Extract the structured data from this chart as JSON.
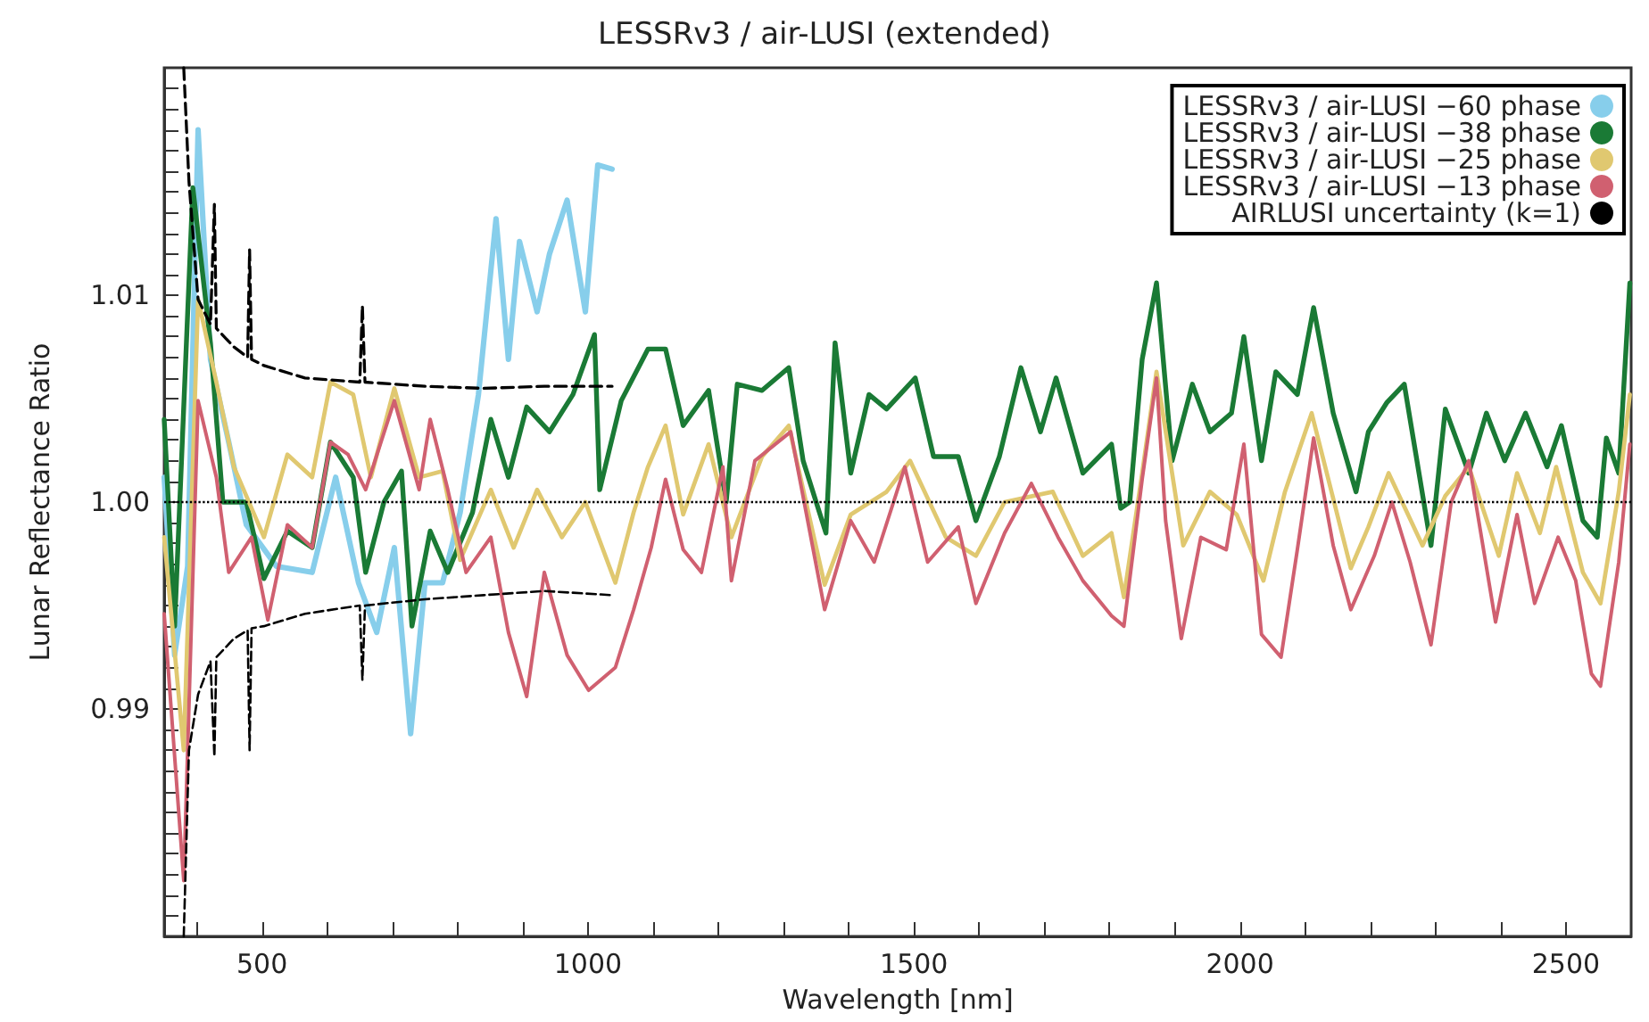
{
  "chart_data": {
    "type": "line",
    "title": "LESSRv3 / air-LUSI (extended)",
    "xlabel": "Wavelength [nm]",
    "ylabel": "Lunar Reflectance Ratio",
    "xlim": [
      350,
      2600
    ],
    "ylim": [
      0.979,
      1.021
    ],
    "xticks": [
      {
        "value": 400,
        "label": null
      },
      500,
      {
        "value": 600,
        "label": null
      },
      {
        "value": 700,
        "label": null
      },
      {
        "value": 800,
        "label": null
      },
      {
        "value": 900,
        "label": null
      },
      1000,
      {
        "value": 1100,
        "label": null
      },
      {
        "value": 1200,
        "label": null
      },
      {
        "value": 1300,
        "label": null
      },
      {
        "value": 1400,
        "label": null
      },
      1500,
      {
        "value": 1600,
        "label": null
      },
      {
        "value": 1700,
        "label": null
      },
      {
        "value": 1800,
        "label": null
      },
      {
        "value": 1900,
        "label": null
      },
      2000,
      {
        "value": 2100,
        "label": null
      },
      {
        "value": 2200,
        "label": null
      },
      {
        "value": 2300,
        "label": null
      },
      {
        "value": 2400,
        "label": null
      },
      2500
    ],
    "yticks": [
      {
        "value": 0.98,
        "label": null
      },
      {
        "value": 0.981,
        "label": null
      },
      {
        "value": 0.982,
        "label": null
      },
      {
        "value": 0.983,
        "label": null
      },
      {
        "value": 0.984,
        "label": null
      },
      {
        "value": 0.985,
        "label": null
      },
      {
        "value": 0.986,
        "label": null
      },
      {
        "value": 0.987,
        "label": null
      },
      {
        "value": 0.988,
        "label": null
      },
      {
        "value": 0.989,
        "label": null
      },
      0.99,
      {
        "value": 0.991,
        "label": null
      },
      {
        "value": 0.992,
        "label": null
      },
      {
        "value": 0.993,
        "label": null
      },
      {
        "value": 0.994,
        "label": null
      },
      {
        "value": 0.995,
        "label": null
      },
      {
        "value": 0.996,
        "label": null
      },
      {
        "value": 0.997,
        "label": null
      },
      {
        "value": 0.998,
        "label": null
      },
      {
        "value": 0.999,
        "label": null
      },
      {
        "value": 1,
        "label": "1.00"
      },
      {
        "value": 1.001,
        "label": null
      },
      {
        "value": 1.002,
        "label": null
      },
      {
        "value": 1.003,
        "label": null
      },
      {
        "value": 1.004,
        "label": null
      },
      {
        "value": 1.005,
        "label": null
      },
      {
        "value": 1.006,
        "label": null
      },
      {
        "value": 1.007,
        "label": null
      },
      {
        "value": 1.008,
        "label": null
      },
      {
        "value": 1.009,
        "label": null
      },
      1.01,
      {
        "value": 1.011,
        "label": null
      },
      {
        "value": 1.012,
        "label": null
      },
      {
        "value": 1.013,
        "label": null
      },
      {
        "value": 1.014,
        "label": null
      },
      {
        "value": 1.015,
        "label": null
      },
      {
        "value": 1.016,
        "label": null
      },
      {
        "value": 1.017,
        "label": null
      },
      {
        "value": 1.018,
        "label": null
      },
      {
        "value": 1.019,
        "label": null
      },
      {
        "value": 1.02,
        "label": null
      }
    ],
    "grid": false,
    "legend": "top right",
    "marker": "none",
    "ref_lines": [
      {
        "axis": "y",
        "value": 1,
        "label": null,
        "color": "#000000",
        "line_style": "dotted"
      }
    ],
    "series": [
      {
        "name": "LESSRv3 / air-LUSI −60 phase",
        "color": "#87ceeb",
        "line_style": "solid",
        "x": [
          350,
          366,
          386,
          402,
          421,
          449,
          476,
          522,
          577,
          613,
          648,
          676,
          703,
          728,
          750,
          777,
          804,
          832,
          859,
          878,
          895,
          922,
          941,
          968,
          996,
          1015,
          1037
        ],
        "values": [
          1.0012,
          0.9926,
          0.9969,
          1.018,
          1.0069,
          1.0029,
          0.9989,
          0.9969,
          0.9966,
          1.0012,
          0.9961,
          0.9937,
          0.9978,
          0.9888,
          0.9961,
          0.9961,
          0.9995,
          1.0052,
          1.0137,
          1.0069,
          1.0126,
          1.0092,
          1.012,
          1.0146,
          1.0092,
          1.0163,
          1.0161
        ]
      },
      {
        "name": "LESSRv3 / air-LUSI −38 phase",
        "color": "#1a7a35",
        "line_style": "solid",
        "x": [
          350,
          366,
          394,
          421,
          440,
          476,
          503,
          539,
          577,
          605,
          640,
          659,
          687,
          714,
          730,
          758,
          785,
          823,
          851,
          878,
          906,
          941,
          977,
          1010,
          1018,
          1051,
          1092,
          1119,
          1146,
          1185,
          1212,
          1229,
          1267,
          1308,
          1330,
          1365,
          1379,
          1403,
          1431,
          1458,
          1502,
          1530,
          1568,
          1595,
          1631,
          1664,
          1694,
          1718,
          1759,
          1803,
          1817,
          1831,
          1850,
          1872,
          1896,
          1927,
          1954,
          1987,
          2006,
          2033,
          2055,
          2088,
          2113,
          2143,
          2178,
          2197,
          2225,
          2252,
          2293,
          2315,
          2351,
          2378,
          2406,
          2438,
          2471,
          2493,
          2526,
          2548,
          2562,
          2581,
          2598
        ],
        "values": [
          1.004,
          0.994,
          1.0152,
          1.0077,
          1,
          1,
          0.9963,
          0.9986,
          0.9978,
          1.0029,
          1.0012,
          0.9966,
          1,
          1.0015,
          0.994,
          0.9986,
          0.9966,
          0.9995,
          1.004,
          1.0012,
          1.0046,
          1.0034,
          1.0052,
          1.0081,
          1.0006,
          1.0049,
          1.0074,
          1.0074,
          1.0037,
          1.0054,
          1,
          1.0057,
          1.0054,
          1.0065,
          1.002,
          0.9985,
          1.0077,
          1.0014,
          1.0052,
          1.0045,
          1.006,
          1.0022,
          1.0022,
          0.9991,
          1.0022,
          1.0065,
          1.0034,
          1.006,
          1.0014,
          1.0028,
          0.9997,
          1,
          1.0069,
          1.0106,
          1.002,
          1.0057,
          1.0034,
          1.0043,
          1.008,
          1.002,
          1.0063,
          1.0052,
          1.0094,
          1.0043,
          1.0005,
          1.0034,
          1.0048,
          1.0057,
          0.9979,
          1.0045,
          1.0014,
          1.0043,
          1.002,
          1.0043,
          1.0017,
          1.0037,
          0.9991,
          0.9983,
          1.0031,
          1.0014,
          1.0106
        ]
      },
      {
        "name": "LESSRv3 / air-LUSI −25 phase",
        "color": "#e0c870",
        "line_style": "solid",
        "x": [
          350,
          380,
          402,
          430,
          457,
          503,
          539,
          577,
          605,
          640,
          667,
          703,
          741,
          777,
          804,
          851,
          886,
          922,
          960,
          996,
          1042,
          1070,
          1092,
          1119,
          1146,
          1185,
          1220,
          1267,
          1308,
          1363,
          1403,
          1458,
          1494,
          1549,
          1595,
          1639,
          1713,
          1759,
          1803,
          1822,
          1850,
          1872,
          1913,
          1954,
          1995,
          2036,
          2069,
          2110,
          2170,
          2197,
          2228,
          2280,
          2315,
          2351,
          2397,
          2425,
          2460,
          2485,
          2526,
          2553,
          2581,
          2598
        ],
        "values": [
          0.9983,
          0.988,
          1.0098,
          1.0058,
          1.0017,
          0.9983,
          1.0023,
          1.0012,
          1.0058,
          1.0052,
          1.0012,
          1.0055,
          1.0012,
          1.0015,
          0.9972,
          1.0006,
          0.9978,
          1.0006,
          0.9983,
          1,
          0.9961,
          0.9995,
          1.0017,
          1.0037,
          0.9994,
          1.0028,
          0.9983,
          1.0022,
          1.0037,
          0.996,
          0.9994,
          1.0005,
          1.002,
          0.9983,
          0.9974,
          1,
          1.0005,
          0.9974,
          0.9985,
          0.9954,
          1.0014,
          1.0063,
          0.9979,
          1.0005,
          0.9994,
          0.9962,
          1.0005,
          1.0043,
          0.9968,
          0.9988,
          1.0014,
          0.9979,
          1.0003,
          1.0017,
          0.9974,
          1.0014,
          0.9985,
          1.0017,
          0.9966,
          0.9951,
          1.0005,
          1.0052
        ]
      },
      {
        "name": "LESSRv3 / air-LUSI −13 phase",
        "color": "#d06070",
        "line_style": "solid",
        "x": [
          350,
          380,
          402,
          430,
          449,
          484,
          509,
          539,
          577,
          605,
          632,
          659,
          703,
          741,
          758,
          785,
          813,
          851,
          878,
          906,
          933,
          968,
          1001,
          1042,
          1070,
          1097,
          1119,
          1146,
          1174,
          1207,
          1220,
          1256,
          1311,
          1363,
          1403,
          1439,
          1486,
          1521,
          1568,
          1595,
          1639,
          1680,
          1721,
          1759,
          1803,
          1822,
          1850,
          1872,
          1886,
          1910,
          1940,
          1979,
          2006,
          2033,
          2063,
          2088,
          2113,
          2143,
          2170,
          2206,
          2233,
          2261,
          2293,
          2324,
          2351,
          2392,
          2425,
          2452,
          2488,
          2515,
          2539,
          2553,
          2581,
          2598
        ],
        "values": [
          0.9946,
          0.9817,
          1.0049,
          1.0012,
          0.9966,
          0.9983,
          0.9943,
          0.9989,
          0.9978,
          1.0029,
          1.0023,
          1.0006,
          1.0049,
          1.0006,
          1.004,
          1.0006,
          0.9966,
          0.9983,
          0.9937,
          0.9906,
          0.9966,
          0.9926,
          0.9909,
          0.992,
          0.9948,
          0.9978,
          1.0011,
          0.9977,
          0.9966,
          1.0017,
          0.9962,
          1.002,
          1.0034,
          0.9948,
          0.9991,
          0.9971,
          1.0017,
          0.9971,
          0.9988,
          0.9951,
          0.9985,
          1.0009,
          0.9983,
          0.9962,
          0.9945,
          0.994,
          1.0011,
          1.006,
          0.9991,
          0.9934,
          0.9983,
          0.9977,
          1.0028,
          0.9936,
          0.9925,
          0.9977,
          1.0031,
          0.9979,
          0.9948,
          0.9974,
          1,
          0.9971,
          0.9931,
          1,
          1.002,
          0.9942,
          0.9994,
          0.9951,
          0.9983,
          0.9962,
          0.9917,
          0.9911,
          0.9971,
          1.0028
        ]
      },
      {
        "name": "AIRLUSI uncertainty (k=1)",
        "color": "#000000",
        "line_style": "dashed",
        "x": [
          380,
          388,
          402,
          421,
          427,
          430,
          457,
          478,
          481,
          484,
          503,
          566,
          650,
          654,
          658,
          750,
          840,
          933,
          1037
        ],
        "values": [
          1.021,
          1.0155,
          1.0098,
          1.0086,
          1.0144,
          1.0084,
          1.0075,
          1.007,
          1.0122,
          1.0069,
          1.0066,
          1.006,
          1.0058,
          1.0095,
          1.0058,
          1.0056,
          1.0055,
          1.0056,
          1.0056
        ]
      },
      {
        "color": "#000000",
        "line_style": "dashed",
        "x": [
          380,
          388,
          402,
          421,
          427,
          430,
          457,
          478,
          481,
          484,
          503,
          566,
          650,
          654,
          658,
          750,
          840,
          933,
          1037
        ],
        "values": [
          0.979,
          0.988,
          0.9907,
          0.9923,
          0.9877,
          0.9925,
          0.9934,
          0.9938,
          0.988,
          0.9939,
          0.994,
          0.9946,
          0.995,
          0.9914,
          0.995,
          0.9953,
          0.9955,
          0.9957,
          0.9955
        ]
      }
    ]
  }
}
